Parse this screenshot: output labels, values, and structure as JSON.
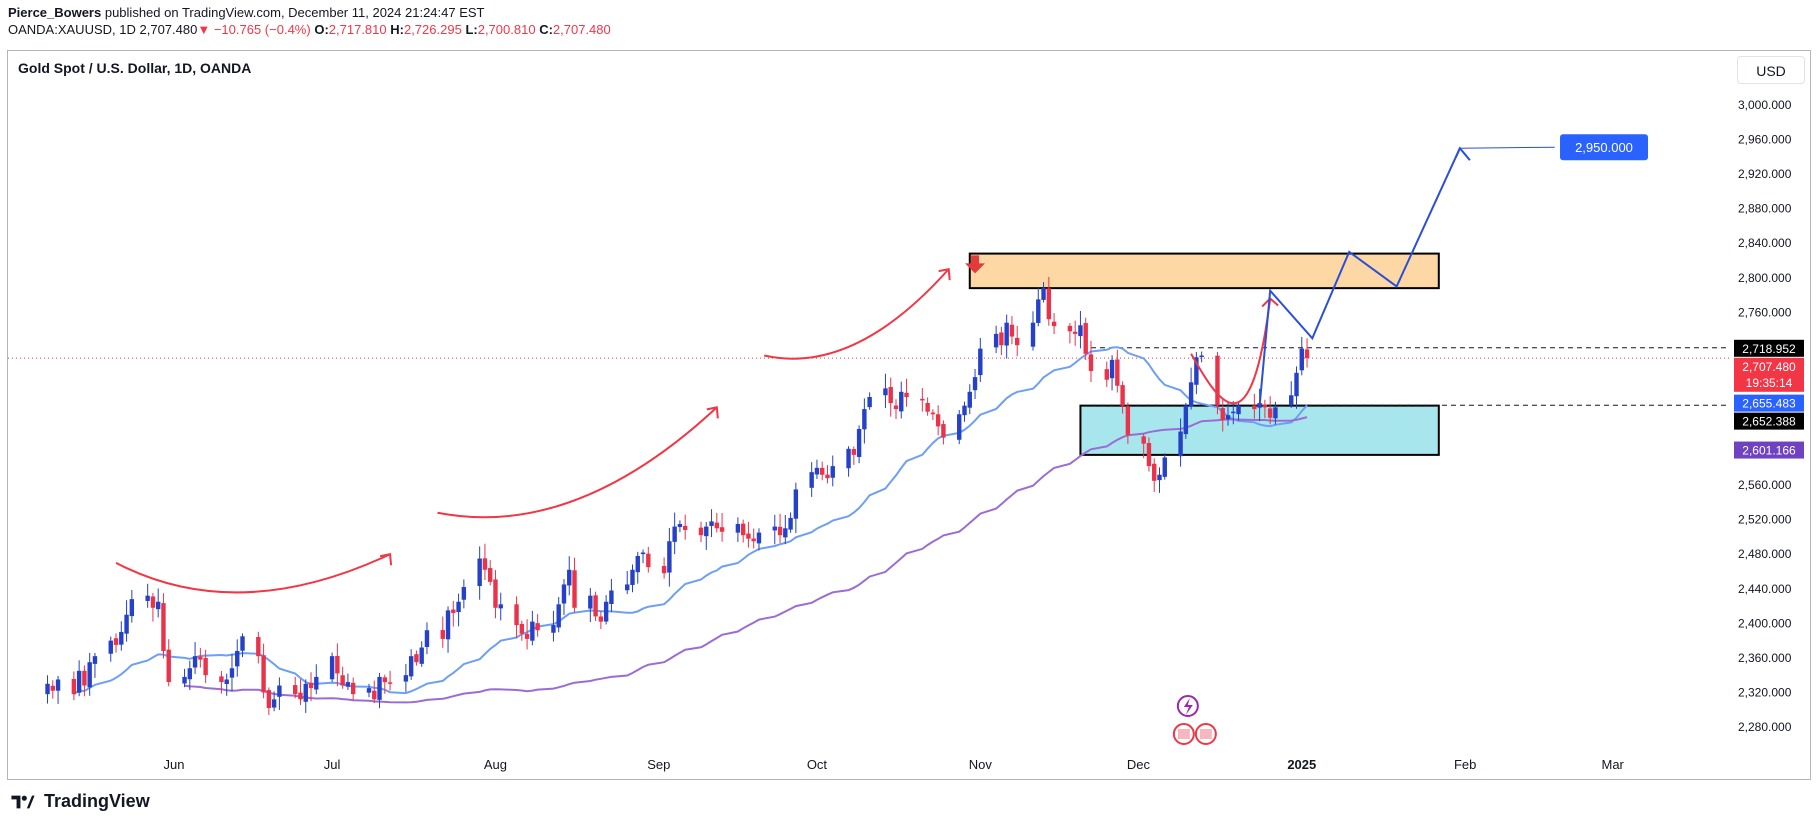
{
  "header": {
    "author": "Pierce_Bowers",
    "published": " published on TradingView.com, December 11, 2024 21:24:47 EST",
    "symbol": "OANDA:XAUUSD, 1D",
    "last": "2,707.480",
    "change": "−10.765 (−0.4%)",
    "o_label": "O:",
    "o": "2,717.810",
    "h_label": "H:",
    "h": "2,726.295",
    "l_label": "L:",
    "l": "2,700.810",
    "c_label": "C:",
    "c": "2,707.480"
  },
  "chart_title": "Gold Spot / U.S. Dollar, 1D, OANDA",
  "currency_button": "USD",
  "brand": "TradingView",
  "colors": {
    "up": "#2441c7",
    "down": "#e8334a",
    "ma_fast": "#6d9ff5",
    "ma_slow": "#9b6dd3",
    "resistance_fill": "#fdd8a5",
    "support_fill": "#a8e6ee",
    "projection": "#2b4fd6",
    "arc": "#f23645"
  },
  "chart_data": {
    "type": "candlestick",
    "title": "Gold Spot / U.S. Dollar, 1D, OANDA",
    "ylim": [
      2240,
      3040
    ],
    "y_ticks": [
      2280,
      2320,
      2360,
      2400,
      2440,
      2480,
      2520,
      2560,
      2600,
      2640,
      2680,
      2720,
      2760,
      2800,
      2840,
      2880,
      2920,
      2960,
      3000
    ],
    "y_tick_labels": [
      "2,280.000",
      "2,320.000",
      "2,360.000",
      "2,400.000",
      "2,440.000",
      "2,480.000",
      "2,520.000",
      "2,560.000",
      "",
      "",
      "",
      "",
      "2,760.000",
      "2,800.000",
      "2,840.000",
      "2,880.000",
      "2,920.000",
      "2,960.000",
      "3,000.000"
    ],
    "x_labels": [
      {
        "date": "2024-06-01",
        "label": "Jun",
        "bold": false
      },
      {
        "date": "2024-07-01",
        "label": "Jul",
        "bold": false
      },
      {
        "date": "2024-08-01",
        "label": "Aug",
        "bold": false
      },
      {
        "date": "2024-09-01",
        "label": "Sep",
        "bold": false
      },
      {
        "date": "2024-10-01",
        "label": "Oct",
        "bold": false
      },
      {
        "date": "2024-11-01",
        "label": "Nov",
        "bold": false
      },
      {
        "date": "2024-12-01",
        "label": "Dec",
        "bold": false
      },
      {
        "date": "2025-01-01",
        "label": "2025",
        "bold": true
      },
      {
        "date": "2025-02-01",
        "label": "Feb",
        "bold": false
      },
      {
        "date": "2025-03-01",
        "label": "Mar",
        "bold": false
      }
    ],
    "closes": [
      2330,
      2322,
      2335,
      2318,
      2345,
      2328,
      2355,
      2362,
      2380,
      2375,
      2390,
      2410,
      2428,
      2432,
      2418,
      2425,
      2368,
      2332,
      2338,
      2348,
      2362,
      2358,
      2340,
      2332,
      2335,
      2348,
      2368,
      2385,
      2362,
      2320,
      2302,
      2312,
      2328,
      2318,
      2312,
      2330,
      2325,
      2338,
      2362,
      2342,
      2328,
      2332,
      2318,
      2325,
      2312,
      2338,
      2332,
      2330,
      2340,
      2362,
      2355,
      2372,
      2392,
      2382,
      2415,
      2412,
      2425,
      2442,
      2475,
      2462,
      2448,
      2418,
      2422,
      2398,
      2388,
      2382,
      2402,
      2392,
      2398,
      2422,
      2445,
      2462,
      2418,
      2432,
      2408,
      2402,
      2425,
      2438,
      2445,
      2462,
      2478,
      2482,
      2465,
      2458,
      2495,
      2512,
      2515,
      2508,
      2502,
      2512,
      2518,
      2510,
      2506,
      2515,
      2502,
      2498,
      2495,
      2505,
      2512,
      2502,
      2510,
      2522,
      2555,
      2575,
      2580,
      2572,
      2568,
      2582,
      2602,
      2595,
      2625,
      2648,
      2662,
      2672,
      2655,
      2648,
      2668,
      2662,
      2658,
      2645,
      2642,
      2628,
      2615,
      2642,
      2652,
      2668,
      2685,
      2718,
      2735,
      2722,
      2748,
      2732,
      2722,
      2748,
      2775,
      2788,
      2752,
      2744,
      2738,
      2735,
      2745,
      2712,
      2692,
      2682,
      2705,
      2675,
      2652,
      2618,
      2608,
      2582,
      2565,
      2572,
      2592,
      2622,
      2652,
      2679,
      2708,
      2710,
      2652,
      2635,
      2641,
      2645,
      2652,
      2648,
      2655,
      2650,
      2638,
      2650,
      2664,
      2690,
      2718,
      2707
    ],
    "projection_path_dates_values": [
      {
        "date": "2024-12-11",
        "value": 2715
      },
      {
        "date": "2024-12-20",
        "value": 2640
      },
      {
        "date": "2024-12-26",
        "value": 2785
      },
      {
        "date": "2025-01-03",
        "value": 2730
      },
      {
        "date": "2025-01-10",
        "value": 2830
      },
      {
        "date": "2025-01-19",
        "value": 2790
      },
      {
        "date": "2025-01-31",
        "value": 2950
      }
    ],
    "resistance_zone": {
      "low": 2788,
      "high": 2828,
      "from": "2024-10-30",
      "to": "2025-01-27"
    },
    "support_zone": {
      "low": 2595,
      "high": 2652,
      "from": "2024-11-20",
      "to": "2025-01-27"
    },
    "price_labels": [
      {
        "text": "2,718.952",
        "value": 2718.952,
        "bg": "#000000",
        "fg": "#ffffff"
      },
      {
        "text": "2,707.480",
        "sub": "19:35:14",
        "value": 2707.48,
        "bg": "#f23645",
        "fg": "#ffffff"
      },
      {
        "text": "2,655.483",
        "value": 2655.483,
        "bg": "#2962ff",
        "fg": "#ffffff"
      },
      {
        "text": "2,652.388",
        "value": 2652.388,
        "bg": "#000000",
        "fg": "#ffffff"
      },
      {
        "text": "2,601.166",
        "value": 2601.166,
        "bg": "#6f42c1",
        "fg": "#ffffff"
      }
    ],
    "target_label": "2,950.000",
    "target_value": 2950
  }
}
